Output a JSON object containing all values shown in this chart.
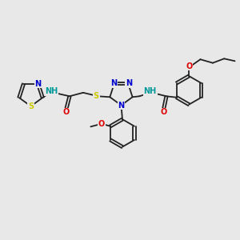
{
  "bg_color": "#e8e8e8",
  "bond_color": "#222222",
  "bond_lw": 1.3,
  "dbo": 0.055,
  "atom_colors": {
    "N": "#0000cc",
    "S": "#cccc00",
    "O": "#dd0000",
    "H": "#009999",
    "C": "#222222"
  },
  "fontsize": 7.0,
  "figsize": [
    3.0,
    3.0
  ],
  "dpi": 100,
  "xlim": [
    0,
    10
  ],
  "ylim": [
    2,
    9
  ]
}
